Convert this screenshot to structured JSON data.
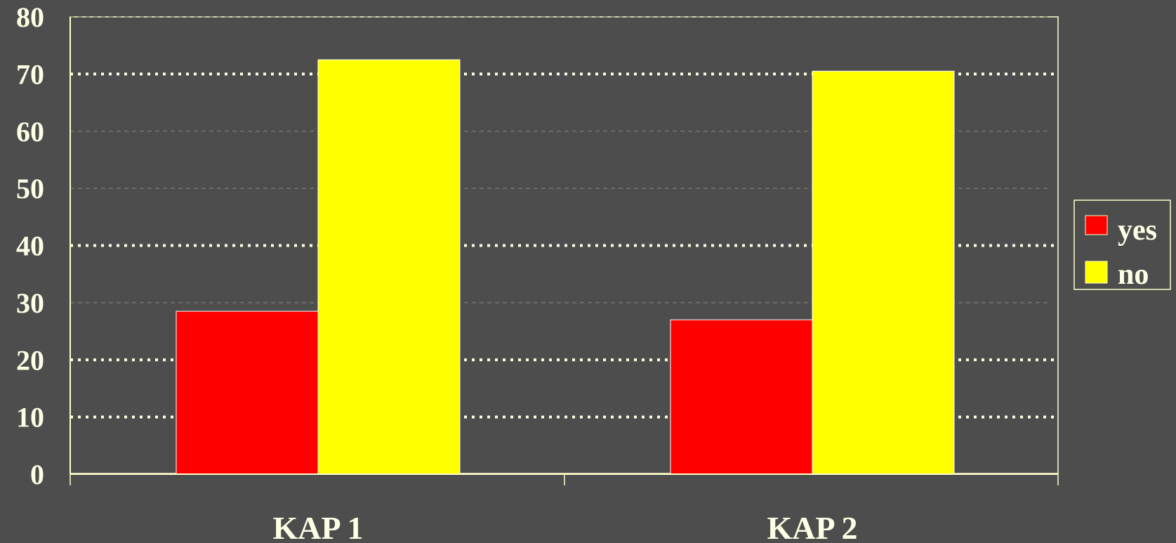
{
  "chart_data": {
    "type": "bar",
    "title": "",
    "xlabel": "",
    "ylabel": "",
    "categories": [
      "KAP 1",
      "KAP 2"
    ],
    "series": [
      {
        "name": "yes",
        "values": [
          28.5,
          27
        ],
        "color": "#ff0000"
      },
      {
        "name": "no",
        "values": [
          72.5,
          70.5
        ],
        "color": "#ffff00"
      }
    ],
    "ylim": [
      0,
      80
    ],
    "yticks": [
      0,
      10,
      20,
      30,
      40,
      50,
      60,
      70,
      80
    ],
    "dotted_gridlines": [
      10,
      20,
      40,
      70
    ],
    "dashed_gridlines": [
      30,
      50,
      60,
      80
    ],
    "legend": "right",
    "colors": {
      "background": "#4d4d4d",
      "axis": "#ffffcc",
      "text": "#ffffe6",
      "dotted_grid": "#ffffe6",
      "dashed_grid": "#8a8a78"
    }
  }
}
